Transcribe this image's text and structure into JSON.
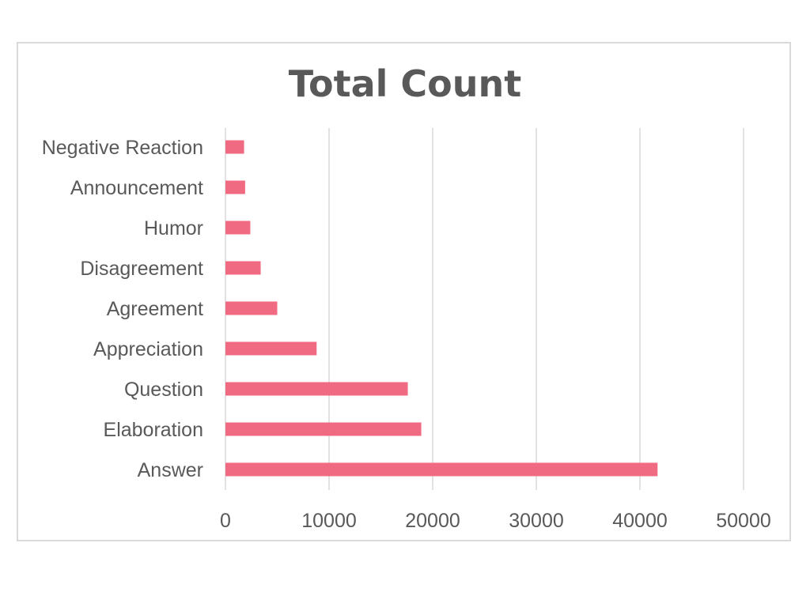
{
  "chart_data": {
    "type": "bar",
    "orientation": "horizontal",
    "title": "Total Count",
    "xlabel": "",
    "ylabel": "",
    "categories": [
      "Answer",
      "Elaboration",
      "Question",
      "Appreciation",
      "Agreement",
      "Disagreement",
      "Humor",
      "Announcement",
      "Negative Reaction"
    ],
    "values": [
      41700,
      18900,
      17600,
      8800,
      5000,
      3400,
      2400,
      1900,
      1800
    ],
    "xlim": [
      0,
      50000
    ],
    "xticks": [
      0,
      10000,
      20000,
      30000,
      40000,
      50000
    ],
    "xtick_labels": [
      "0",
      "10000",
      "20000",
      "30000",
      "40000",
      "50000"
    ],
    "grid": true,
    "legend": "none",
    "bar_color": "#f06b82",
    "grid_color": "#d9d9d9",
    "text_color": "#595959"
  }
}
